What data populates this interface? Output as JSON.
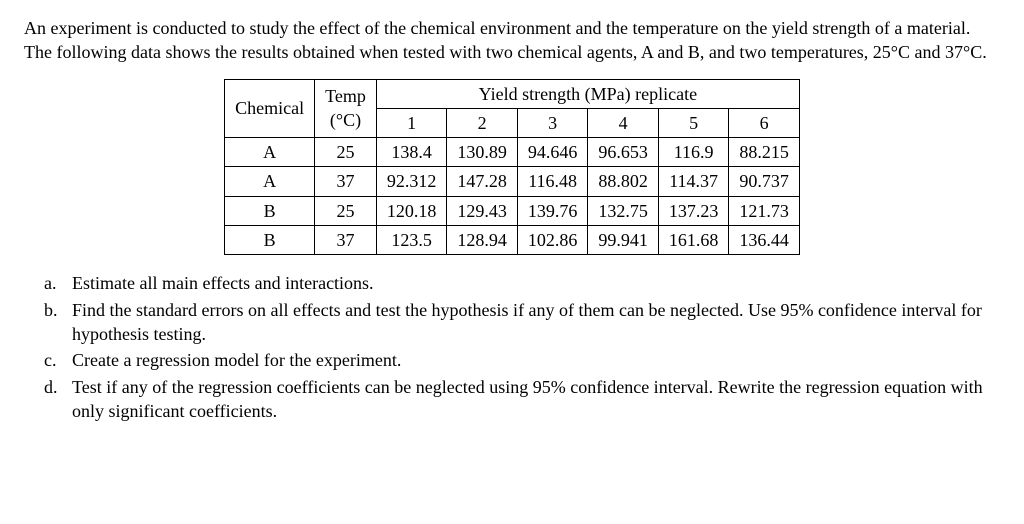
{
  "intro": "An experiment is conducted to study the effect of the chemical environment and the temperature on the yield strength of a material. The following data shows the results obtained when tested with two chemical agents, A and B, and two temperatures, 25°C and 37°C.",
  "table": {
    "header": {
      "chemical": "Chemical",
      "temp": "Temp\n(°C)",
      "temp_line1": "Temp",
      "temp_line2": "(°C)",
      "yield": "Yield strength (MPa) replicate",
      "reps": [
        "1",
        "2",
        "3",
        "4",
        "5",
        "6"
      ]
    },
    "rows": [
      {
        "chemical": "A",
        "temp": "25",
        "vals": [
          "138.4",
          "130.89",
          "94.646",
          "96.653",
          "116.9",
          "88.215"
        ]
      },
      {
        "chemical": "A",
        "temp": "37",
        "vals": [
          "92.312",
          "147.28",
          "116.48",
          "88.802",
          "114.37",
          "90.737"
        ]
      },
      {
        "chemical": "B",
        "temp": "25",
        "vals": [
          "120.18",
          "129.43",
          "139.76",
          "132.75",
          "137.23",
          "121.73"
        ]
      },
      {
        "chemical": "B",
        "temp": "37",
        "vals": [
          "123.5",
          "128.94",
          "102.86",
          "99.941",
          "161.68",
          "136.44"
        ]
      }
    ]
  },
  "questions": [
    {
      "letter": "a.",
      "text": "Estimate all main effects and interactions."
    },
    {
      "letter": "b.",
      "text": "Find the standard errors on all effects and test the hypothesis if any of them can be neglected. Use 95% confidence interval for hypothesis testing."
    },
    {
      "letter": "c.",
      "text": "Create a regression model for the experiment."
    },
    {
      "letter": "d.",
      "text": "Test if any of the regression coefficients can be neglected using 95% confidence interval. Rewrite the regression equation with only significant coefficients."
    }
  ]
}
